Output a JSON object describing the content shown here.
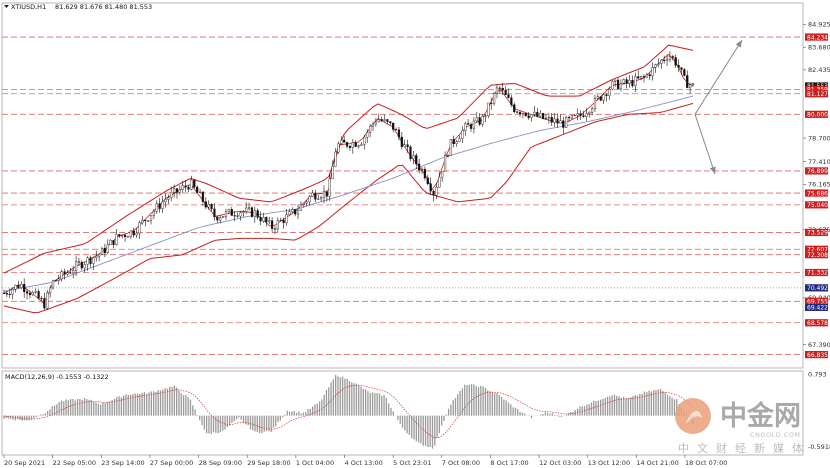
{
  "chart_data": {
    "type": "candlestick",
    "header": {
      "symbol": "XTIUSD,H1",
      "ohlc": "81.629 81.676 81.480 81.553"
    },
    "ylim": [
      66.1,
      86.1
    ],
    "price_ticks": [
      "84.925",
      "83.680",
      "82.435",
      "78.700",
      "77.410",
      "76.165",
      "73.675",
      "69.940",
      "67.390"
    ],
    "level_labels": [
      {
        "value": 84.234,
        "label": "84.234",
        "color": "#cc1f1f"
      },
      {
        "value": 81.553,
        "label": "81.553",
        "color": "#1a1a1a"
      },
      {
        "value": 81.359,
        "label": "81.359",
        "color": "#cc1f1f"
      },
      {
        "value": 81.127,
        "label": "81.127",
        "color": "#cc1f1f"
      },
      {
        "value": 80.0,
        "label": "80.000",
        "color": "#cc1f1f"
      },
      {
        "value": 76.899,
        "label": "76.899",
        "color": "#cc1f1f"
      },
      {
        "value": 75.686,
        "label": "75.686",
        "color": "#cc1f1f"
      },
      {
        "value": 75.04,
        "label": "75.040",
        "color": "#cc1f1f"
      },
      {
        "value": 73.529,
        "label": "73.529",
        "color": "#cc1f1f"
      },
      {
        "value": 72.607,
        "label": "72.607",
        "color": "#cc1f1f"
      },
      {
        "value": 72.308,
        "label": "72.308",
        "color": "#cc1f1f"
      },
      {
        "value": 71.332,
        "label": "71.332",
        "color": "#cc1f1f"
      },
      {
        "value": 70.492,
        "label": "70.492",
        "color": "#1f2a80"
      },
      {
        "value": 69.755,
        "label": "69.755",
        "color": "#cc1f1f"
      },
      {
        "value": 69.422,
        "label": "69.422",
        "color": "#1f2a80"
      },
      {
        "value": 68.578,
        "label": "68.578",
        "color": "#cc1f1f"
      },
      {
        "value": 66.835,
        "label": "66.835",
        "color": "#cc1f1f"
      }
    ],
    "dashed_levels": [
      84.234,
      81.359,
      81.127,
      80.0,
      76.899,
      75.686,
      75.04,
      73.529,
      72.607,
      72.308,
      71.332,
      69.755,
      68.578,
      66.835
    ],
    "dotted_levels": [
      70.492
    ],
    "x_labels": [
      "20 Sep 2021",
      "22 Sep 05:00",
      "23 Sep 14:00",
      "27 Sep 00:00",
      "28 Sep 09:00",
      "29 Sep 18:00",
      "1 Oct 04:00",
      "4 Oct 13:00",
      "5 Oct 23:01",
      "7 Oct 08:00",
      "8 Oct 17:00",
      "12 Oct 03:00",
      "13 Oct 12:00",
      "14 Oct 21:00",
      "18 Oct 07:00"
    ],
    "price_path": [
      [
        0,
        70.2
      ],
      [
        0.02,
        70.7
      ],
      [
        0.04,
        70.0
      ],
      [
        0.05,
        69.6
      ],
      [
        0.06,
        70.8
      ],
      [
        0.09,
        71.7
      ],
      [
        0.12,
        72.4
      ],
      [
        0.14,
        73.3
      ],
      [
        0.16,
        73.6
      ],
      [
        0.18,
        74.5
      ],
      [
        0.2,
        75.4
      ],
      [
        0.23,
        76.2
      ],
      [
        0.24,
        75.6
      ],
      [
        0.26,
        74.4
      ],
      [
        0.29,
        74.7
      ],
      [
        0.31,
        74.6
      ],
      [
        0.33,
        73.8
      ],
      [
        0.34,
        74.1
      ],
      [
        0.36,
        74.7
      ],
      [
        0.38,
        75.6
      ],
      [
        0.4,
        75.7
      ],
      [
        0.41,
        78.3
      ],
      [
        0.44,
        78.5
      ],
      [
        0.46,
        79.8
      ],
      [
        0.48,
        79.3
      ],
      [
        0.5,
        77.8
      ],
      [
        0.52,
        76.7
      ],
      [
        0.53,
        75.7
      ],
      [
        0.55,
        78.3
      ],
      [
        0.57,
        79.3
      ],
      [
        0.59,
        79.7
      ],
      [
        0.61,
        81.5
      ],
      [
        0.63,
        80.3
      ],
      [
        0.65,
        80.0
      ],
      [
        0.67,
        79.7
      ],
      [
        0.69,
        79.5
      ],
      [
        0.71,
        79.9
      ],
      [
        0.73,
        80.7
      ],
      [
        0.75,
        81.6
      ],
      [
        0.77,
        81.7
      ],
      [
        0.79,
        82.0
      ],
      [
        0.81,
        82.9
      ],
      [
        0.82,
        83.3
      ],
      [
        0.83,
        82.8
      ],
      [
        0.84,
        81.8
      ],
      [
        0.85,
        81.55
      ]
    ],
    "bollinger_upper": [
      [
        0,
        71.3
      ],
      [
        0.05,
        72.4
      ],
      [
        0.1,
        72.9
      ],
      [
        0.15,
        74.4
      ],
      [
        0.2,
        75.8
      ],
      [
        0.23,
        76.5
      ],
      [
        0.25,
        76.2
      ],
      [
        0.29,
        75.4
      ],
      [
        0.33,
        75.2
      ],
      [
        0.37,
        75.9
      ],
      [
        0.4,
        76.5
      ],
      [
        0.42,
        79.0
      ],
      [
        0.46,
        80.6
      ],
      [
        0.49,
        80.0
      ],
      [
        0.52,
        79.2
      ],
      [
        0.56,
        79.8
      ],
      [
        0.6,
        81.6
      ],
      [
        0.63,
        81.7
      ],
      [
        0.67,
        81.0
      ],
      [
        0.71,
        81.0
      ],
      [
        0.75,
        81.9
      ],
      [
        0.79,
        82.6
      ],
      [
        0.82,
        83.8
      ],
      [
        0.85,
        83.5
      ]
    ],
    "bollinger_lower": [
      [
        0,
        69.5
      ],
      [
        0.04,
        69.1
      ],
      [
        0.09,
        69.9
      ],
      [
        0.14,
        71.1
      ],
      [
        0.18,
        72.1
      ],
      [
        0.22,
        72.3
      ],
      [
        0.26,
        73.1
      ],
      [
        0.29,
        73.2
      ],
      [
        0.33,
        73.2
      ],
      [
        0.36,
        73.1
      ],
      [
        0.39,
        73.9
      ],
      [
        0.42,
        75.0
      ],
      [
        0.46,
        76.4
      ],
      [
        0.49,
        77.3
      ],
      [
        0.52,
        75.7
      ],
      [
        0.56,
        75.2
      ],
      [
        0.6,
        75.4
      ],
      [
        0.62,
        76.3
      ],
      [
        0.65,
        78.2
      ],
      [
        0.69,
        78.9
      ],
      [
        0.73,
        79.6
      ],
      [
        0.77,
        80.0
      ],
      [
        0.81,
        80.1
      ],
      [
        0.85,
        80.6
      ]
    ],
    "moving_average": [
      [
        0,
        70.3
      ],
      [
        0.06,
        70.8
      ],
      [
        0.12,
        71.8
      ],
      [
        0.18,
        72.8
      ],
      [
        0.24,
        73.8
      ],
      [
        0.3,
        74.4
      ],
      [
        0.36,
        74.8
      ],
      [
        0.42,
        75.6
      ],
      [
        0.48,
        76.5
      ],
      [
        0.54,
        77.6
      ],
      [
        0.6,
        78.4
      ],
      [
        0.66,
        79.1
      ],
      [
        0.72,
        79.6
      ],
      [
        0.78,
        80.2
      ],
      [
        0.85,
        81.0
      ]
    ],
    "indicator": {
      "label": "MACD(12,26,9) -0.1553 -0.1322",
      "ticks": [
        "0.793",
        "-0.5918"
      ],
      "ylim": [
        -0.75,
        0.85
      ],
      "histogram_path": [
        [
          0,
          -0.05
        ],
        [
          0.03,
          -0.1
        ],
        [
          0.05,
          0.05
        ],
        [
          0.07,
          0.28
        ],
        [
          0.1,
          0.32
        ],
        [
          0.12,
          0.22
        ],
        [
          0.15,
          0.4
        ],
        [
          0.18,
          0.44
        ],
        [
          0.21,
          0.56
        ],
        [
          0.23,
          0.3
        ],
        [
          0.25,
          -0.35
        ],
        [
          0.27,
          -0.3
        ],
        [
          0.29,
          -0.05
        ],
        [
          0.31,
          -0.32
        ],
        [
          0.33,
          -0.3
        ],
        [
          0.35,
          0.1
        ],
        [
          0.37,
          0.05
        ],
        [
          0.39,
          0.26
        ],
        [
          0.41,
          0.78
        ],
        [
          0.43,
          0.65
        ],
        [
          0.45,
          0.45
        ],
        [
          0.47,
          0.38
        ],
        [
          0.49,
          -0.2
        ],
        [
          0.51,
          -0.52
        ],
        [
          0.53,
          -0.62
        ],
        [
          0.55,
          0.2
        ],
        [
          0.57,
          0.6
        ],
        [
          0.59,
          0.55
        ],
        [
          0.61,
          0.4
        ],
        [
          0.63,
          0.15
        ],
        [
          0.65,
          -0.04
        ],
        [
          0.67,
          0.06
        ],
        [
          0.69,
          -0.02
        ],
        [
          0.71,
          0.16
        ],
        [
          0.73,
          0.28
        ],
        [
          0.75,
          0.4
        ],
        [
          0.77,
          0.32
        ],
        [
          0.79,
          0.44
        ],
        [
          0.81,
          0.5
        ],
        [
          0.83,
          0.3
        ],
        [
          0.85,
          -0.16
        ]
      ]
    }
  },
  "watermark": {
    "main": "中金网",
    "domain": "CNGOLD.COM",
    "slogan": "中文财经新媒体"
  }
}
